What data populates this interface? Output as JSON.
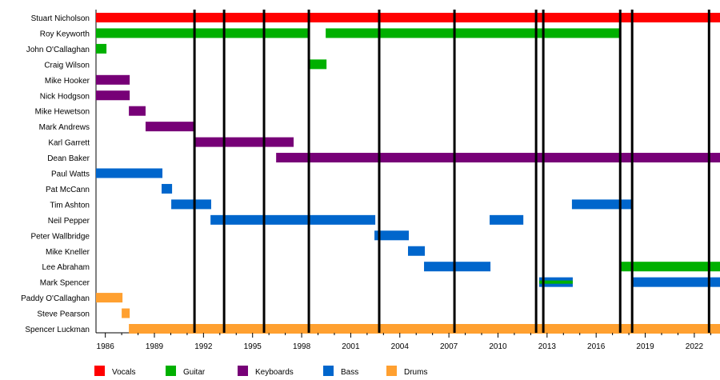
{
  "chart_data": {
    "type": "timeline",
    "xlim": [
      1985.43,
      2023.57
    ],
    "ticks": [
      1986,
      1989,
      1992,
      1995,
      1998,
      2001,
      2004,
      2007,
      2010,
      2013,
      2016,
      2019,
      2022
    ],
    "tick_labels": [
      "1986",
      "1989",
      "1992",
      "1995",
      "1998",
      "2001",
      "2004",
      "2007",
      "2010",
      "2013",
      "2016",
      "2019",
      "2022"
    ],
    "roles": [
      {
        "name": "Vocals",
        "color": "#ff0000"
      },
      {
        "name": "Guitar",
        "color": "#00b000"
      },
      {
        "name": "Keyboards",
        "color": "#770077"
      },
      {
        "name": "Bass",
        "color": "#0066cc"
      },
      {
        "name": "Drums",
        "color": "#ffa030"
      }
    ],
    "members": [
      {
        "name": "Stuart Nicholson",
        "bars": [
          {
            "role": 0,
            "start": 1985.43,
            "end": 2023.57
          }
        ]
      },
      {
        "name": "Roy Keyworth",
        "bars": [
          {
            "role": 1,
            "start": 1985.43,
            "end": 1998.44
          },
          {
            "role": 1,
            "start": 1999.47,
            "end": 2017.41
          }
        ]
      },
      {
        "name": "John O'Callaghan",
        "bars": [
          {
            "role": 1,
            "start": 1985.43,
            "end": 1986.07
          }
        ]
      },
      {
        "name": "Craig Wilson",
        "bars": [
          {
            "role": 1,
            "start": 1998.44,
            "end": 1999.52
          }
        ]
      },
      {
        "name": "Mike Hooker",
        "bars": [
          {
            "role": 2,
            "start": 1985.43,
            "end": 1987.49
          }
        ]
      },
      {
        "name": "Nick Hodgson",
        "bars": [
          {
            "role": 2,
            "start": 1985.43,
            "end": 1987.49
          }
        ]
      },
      {
        "name": "Mike Hewetson",
        "bars": [
          {
            "role": 2,
            "start": 1987.44,
            "end": 1988.46
          }
        ]
      },
      {
        "name": "Mark Andrews",
        "bars": [
          {
            "role": 2,
            "start": 1988.46,
            "end": 1991.45
          }
        ]
      },
      {
        "name": "Karl Garrett",
        "bars": [
          {
            "role": 2,
            "start": 1991.45,
            "end": 1997.51
          }
        ]
      },
      {
        "name": "Dean Baker",
        "bars": [
          {
            "role": 2,
            "start": 1996.44,
            "end": 2023.57
          }
        ]
      },
      {
        "name": "Paul Watts",
        "bars": [
          {
            "role": 3,
            "start": 1985.43,
            "end": 1989.49
          }
        ]
      },
      {
        "name": "Pat McCann",
        "bars": [
          {
            "role": 3,
            "start": 1989.44,
            "end": 1990.08
          }
        ]
      },
      {
        "name": "Tim Ashton",
        "bars": [
          {
            "role": 3,
            "start": 1990.03,
            "end": 1992.47
          },
          {
            "role": 3,
            "start": 2014.52,
            "end": 2018.15
          }
        ]
      },
      {
        "name": "Neil Pepper",
        "bars": [
          {
            "role": 3,
            "start": 1992.43,
            "end": 2002.5
          },
          {
            "role": 3,
            "start": 2009.49,
            "end": 2011.55
          }
        ]
      },
      {
        "name": "Peter Wallbridge",
        "bars": [
          {
            "role": 3,
            "start": 2002.45,
            "end": 2004.55
          }
        ]
      },
      {
        "name": "Mike Kneller",
        "bars": [
          {
            "role": 3,
            "start": 2004.5,
            "end": 2005.53
          }
        ]
      },
      {
        "name": "Lee Abraham",
        "bars": [
          {
            "role": 3,
            "start": 2005.48,
            "end": 2009.54
          },
          {
            "role": 1,
            "start": 2017.51,
            "end": 2023.57
          }
        ]
      },
      {
        "name": "Mark Spencer",
        "bars": [
          {
            "role": 3,
            "start": 2012.52,
            "end": 2014.57,
            "inner_role": 1
          },
          {
            "role": 3,
            "start": 2018.15,
            "end": 2023.57
          }
        ]
      },
      {
        "name": "Paddy O'Callaghan",
        "bars": [
          {
            "role": 4,
            "start": 1985.43,
            "end": 1987.05
          }
        ]
      },
      {
        "name": "Steve Pearson",
        "bars": [
          {
            "role": 4,
            "start": 1987.0,
            "end": 1987.49
          }
        ]
      },
      {
        "name": "Spencer Luckman",
        "bars": [
          {
            "role": 4,
            "start": 1987.44,
            "end": 2023.57
          }
        ]
      }
    ],
    "album_lines": [
      1991.45,
      1993.26,
      1995.7,
      1998.44,
      2002.74,
      2007.34,
      2012.33,
      2012.77,
      2017.47,
      2018.2,
      2022.9
    ]
  }
}
